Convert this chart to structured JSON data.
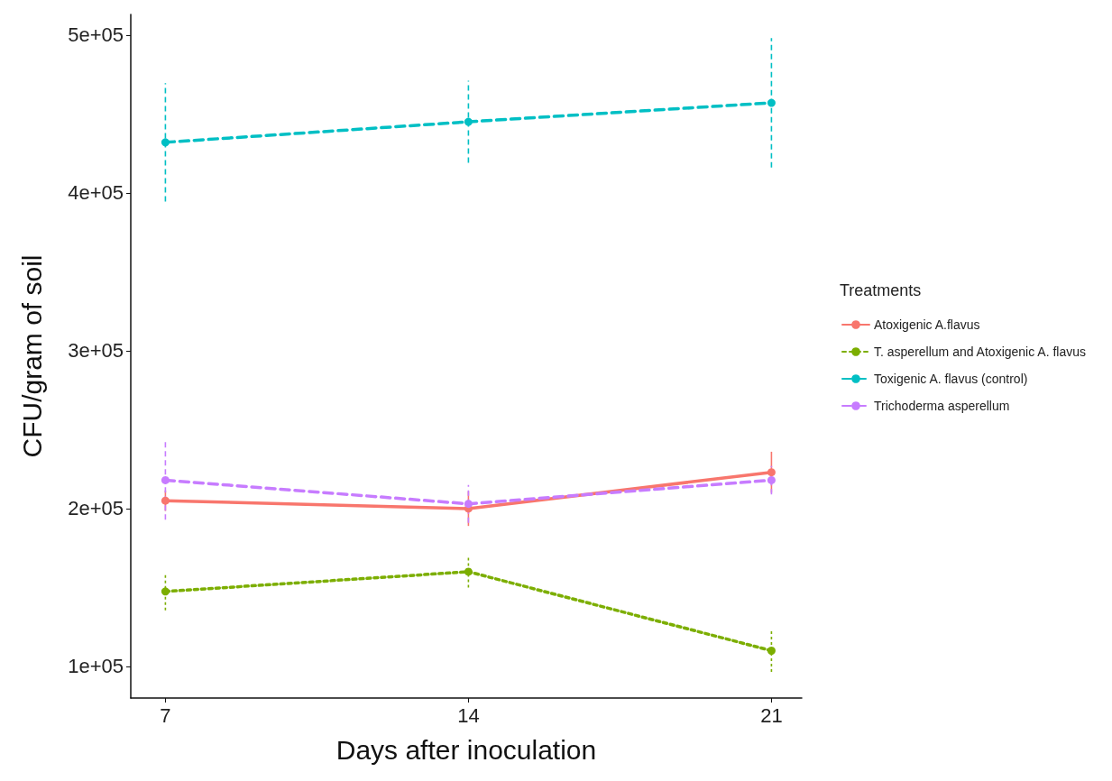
{
  "chart_data": {
    "type": "line",
    "xlabel": "Days after inoculation",
    "ylabel": "CFU/gram of soil",
    "legend_title": "Treatments",
    "x": [
      7,
      14,
      21
    ],
    "xlim": [
      6.2,
      21.7
    ],
    "xticks": [
      7,
      14,
      21
    ],
    "ylim": [
      80000,
      513000
    ],
    "yticks": [
      {
        "value": 100000,
        "label": "1e+05"
      },
      {
        "value": 200000,
        "label": "2e+05"
      },
      {
        "value": 300000,
        "label": "3e+05"
      },
      {
        "value": 400000,
        "label": "4e+05"
      },
      {
        "value": 500000,
        "label": "5e+05"
      }
    ],
    "grid": false,
    "legend": "right",
    "marker": "circle",
    "series": [
      {
        "name": "Atoxigenic A.flavus",
        "color": "#f8766d",
        "line_style": "solid",
        "values": [
          205000,
          200000,
          223000
        ],
        "errors": [
          6500,
          11000,
          13000
        ]
      },
      {
        "name": "T. asperellum and Atoxigenic A. flavus",
        "color": "#7cae00",
        "line_style": "dotted",
        "values": [
          147500,
          160000,
          110000
        ],
        "errors": [
          12000,
          10000,
          13500
        ]
      },
      {
        "name": "Toxigenic A. flavus (control)",
        "color": "#00bfc4",
        "line_style": "dashed",
        "values": [
          432000,
          445000,
          457000
        ],
        "errors": [
          37500,
          26000,
          41000
        ]
      },
      {
        "name": "Trichoderma asperellum",
        "color": "#c77cff",
        "line_style": "dashed",
        "values": [
          218000,
          203000,
          218000
        ],
        "errors": [
          25000,
          12000,
          9000
        ]
      }
    ]
  }
}
